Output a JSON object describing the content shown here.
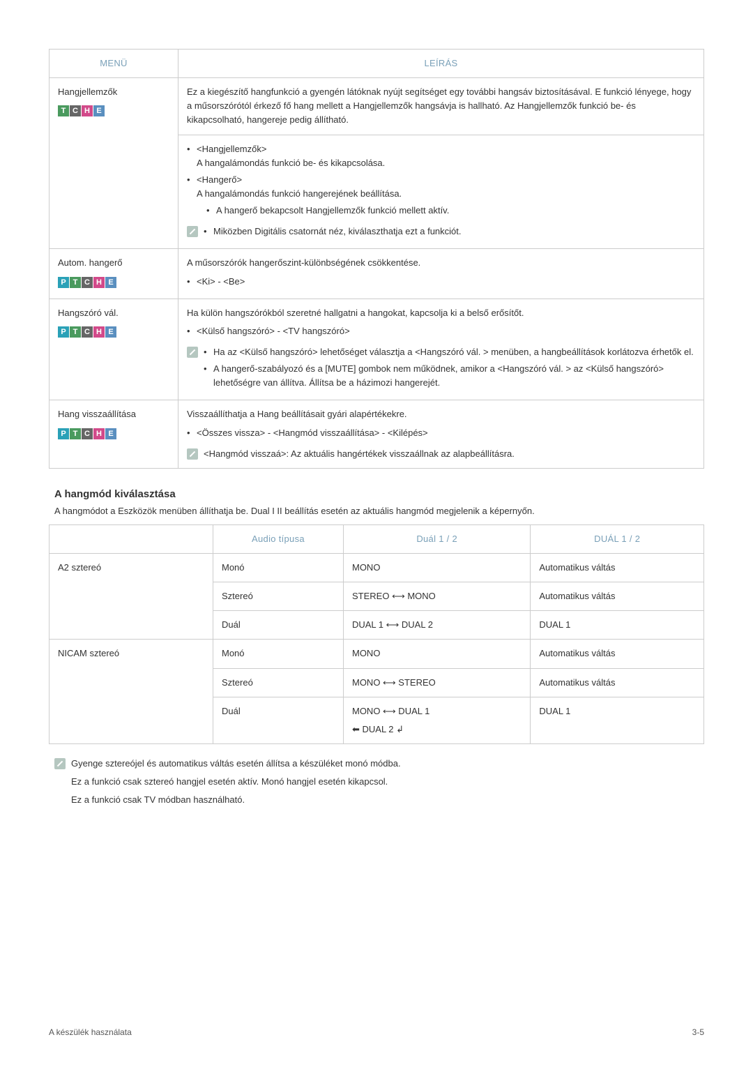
{
  "colors": {
    "header_text": "#7aa0b8",
    "border": "#cccccc",
    "text": "#333333",
    "badge_P": "#2aa1b7",
    "badge_T": "#4a9a5e",
    "badge_C": "#666666",
    "badge_H": "#d24a8a",
    "badge_E": "#5a8fbf",
    "note_icon": "#b5c7c0"
  },
  "table1": {
    "headers": {
      "menu": "MENÜ",
      "desc": "LEÍRÁS"
    },
    "rows": [
      {
        "menu": "Hangjellemzők",
        "badges": [
          "T",
          "C",
          "H",
          "E"
        ],
        "intro": "Ez a kiegészítő hangfunkció a gyengén látóknak nyújt segítséget egy további hangsáv biztosításával. E funkció lényege, hogy a műsorszórótól érkező fő hang mellett a Hangjellemzők hangsávja is hallható. Az Hangjellemzők funkció be- és kikapcsolható, hangereje pedig állítható.",
        "bullets": [
          {
            "label": "<Hangjellemzők>",
            "sub": "A hangalámondás funkció be- és kikapcsolása."
          },
          {
            "label": "<Hangerő>",
            "sub": "A hangalámondás funkció hangerejének beállítása.",
            "subbullets": [
              "A hangerő bekapcsolt Hangjellemzők funkció mellett aktív."
            ]
          }
        ],
        "note_bullets": [
          "Miközben Digitális csatornát néz, kiválaszthatja ezt a funkciót."
        ]
      },
      {
        "menu": "Autom. hangerő",
        "badges": [
          "P",
          "T",
          "C",
          "H",
          "E"
        ],
        "intro": "A műsorszórók hangerőszint-különbségének csökkentése.",
        "bullets": [
          {
            "label": "<Ki> - <Be>"
          }
        ]
      },
      {
        "menu": "Hangszóró vál.",
        "badges": [
          "P",
          "T",
          "C",
          "H",
          "E"
        ],
        "intro": "Ha külön hangszórókból szeretné hallgatni a hangokat, kapcsolja ki a belső erősítőt.",
        "bullets": [
          {
            "label": "<Külső hangszóró> - <TV hangszóró>"
          }
        ],
        "note_bullets": [
          "Ha az <Külső hangszóró> lehetőséget választja a <Hangszóró vál. > menüben, a hangbeállítások korlátozva érhetők el.",
          "A hangerő-szabályozó és a [MUTE] gombok nem működnek, amikor a <Hangszóró vál. > az <Külső hangszóró> lehetőségre van állítva. Állítsa be a házimozi hangerejét."
        ]
      },
      {
        "menu": "Hang visszaállítása",
        "badges": [
          "P",
          "T",
          "C",
          "H",
          "E"
        ],
        "intro": "Visszaállíthatja a Hang beállításait gyári alapértékekre.",
        "bullets": [
          {
            "label": "<Összes vissza> - <Hangmód visszaállítása> - <Kilépés>"
          }
        ],
        "note_text": "<Hangmód visszaá>: Az aktuális hangértékek visszaállnak az alapbeállításra."
      }
    ]
  },
  "section2": {
    "heading": "A hangmód kiválasztása",
    "desc": "A hangmódot a Eszközök menüben állíthatja be. Dual I II beállítás esetén az aktuális hangmód megjelenik a képernyőn.",
    "headers": {
      "c1": "",
      "c2": "Audio típusa",
      "c3": "Duál 1 / 2",
      "c4": "DUÁL 1 / 2"
    },
    "groups": [
      {
        "name": "A2 sztereó",
        "rows": [
          {
            "type": "Monó",
            "dual12_raw": "MONO",
            "dual12b": "Automatikus váltás"
          },
          {
            "type": "Sztereó",
            "dual12_a": "STEREO",
            "dual12_b": "MONO",
            "dual12b": "Automatikus váltás"
          },
          {
            "type": "Duál",
            "dual12_a": "DUAL 1",
            "dual12_b": "DUAL 2",
            "dual12b": "DUAL 1"
          }
        ]
      },
      {
        "name": "NICAM sztereó",
        "rows": [
          {
            "type": "Monó",
            "dual12_raw": "MONO",
            "dual12b": "Automatikus váltás"
          },
          {
            "type": "Sztereó",
            "dual12_a": "MONO",
            "dual12_b": "STEREO",
            "dual12b": "Automatikus váltás"
          },
          {
            "type": "Duál",
            "dual12_a": "MONO",
            "dual12_b": "DUAL 1",
            "extra_a": "DUAL 2",
            "dual12b": "DUAL 1"
          }
        ]
      }
    ],
    "notes": [
      "Gyenge sztereójel és automatikus váltás esetén állítsa a készüléket monó módba.",
      "Ez a funkció csak sztereó hangjel esetén aktív. Monó hangjel esetén kikapcsol.",
      "Ez a funkció csak TV módban használható."
    ]
  },
  "footer": {
    "left": "A készülék használata",
    "right": "3-5"
  }
}
